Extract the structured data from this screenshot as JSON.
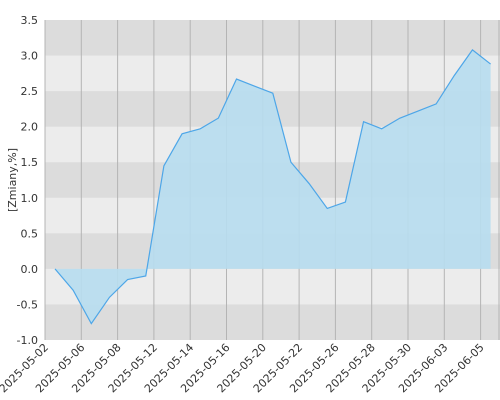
{
  "chart_data": {
    "type": "area",
    "y_label": "[Zmiany,%]",
    "categories": [
      "2025-05-02",
      null,
      "2025-05-06",
      null,
      "2025-05-08",
      null,
      "2025-05-12",
      null,
      "2025-05-14",
      null,
      "2025-05-16",
      null,
      "2025-05-20",
      null,
      "2025-05-22",
      null,
      "2025-05-26",
      null,
      "2025-05-28",
      null,
      "2025-05-30",
      null,
      "2025-06-03",
      null,
      "2025-06-05"
    ],
    "values": [
      0,
      -0.3,
      -0.77,
      -0.4,
      -0.15,
      -0.1,
      1.45,
      1.9,
      1.97,
      2.12,
      2.67,
      2.57,
      2.47,
      1.5,
      1.2,
      0.85,
      0.94,
      2.07,
      1.97,
      2.12,
      2.22,
      2.32,
      2.72,
      3.08,
      2.88
    ],
    "color": "#4da6e8",
    "fill": "#b7ddef",
    "ylim": [
      -1,
      3.5
    ],
    "yticks": [
      {
        "value": -1,
        "label": "-1.0"
      },
      -0.5,
      {
        "value": 0,
        "label": "0.0"
      },
      0.5,
      {
        "value": 1,
        "label": "1.0"
      },
      1.5,
      {
        "value": 2,
        "label": "2.0"
      },
      2.5,
      {
        "value": 3,
        "label": "3.0"
      },
      3.5
    ],
    "grid": true
  }
}
